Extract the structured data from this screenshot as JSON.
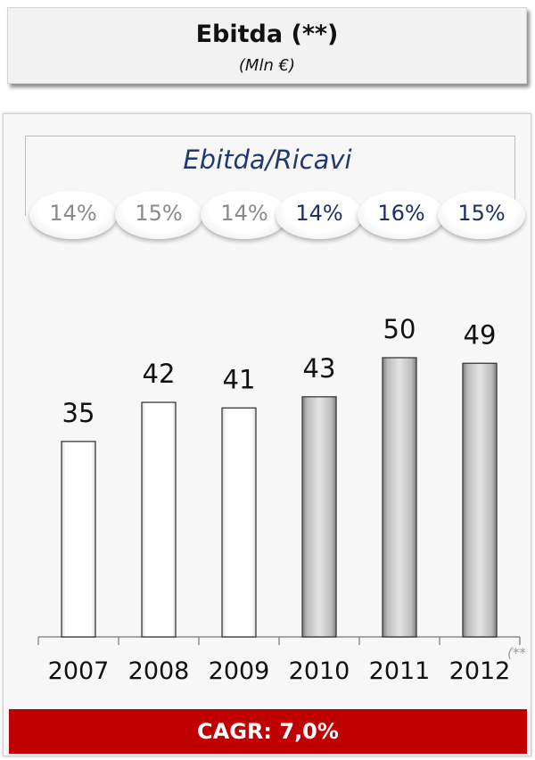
{
  "header": {
    "title": "Ebitda (**)",
    "subtitle": "(Mln €)"
  },
  "ratio": {
    "title": "Ebitda/Ricavi",
    "values": [
      "14%",
      "15%",
      "14%",
      "14%",
      "16%",
      "15%"
    ]
  },
  "chart_data": {
    "type": "bar",
    "categories": [
      "2007",
      "2008",
      "2009",
      "2010",
      "2011",
      "2012"
    ],
    "values": [
      35,
      42,
      41,
      43,
      50,
      49
    ],
    "bar_styles": [
      "white",
      "white",
      "white",
      "gray",
      "gray",
      "gray"
    ],
    "title": "Ebitda (**)",
    "ylim": [
      0,
      55
    ]
  },
  "footer": {
    "cagr": "CAGR: 7,0%",
    "footnote": "(**"
  },
  "colors": {
    "accent_red": "#c00000",
    "navy": "#1f2e66",
    "gray_text": "#8a8a8a"
  }
}
